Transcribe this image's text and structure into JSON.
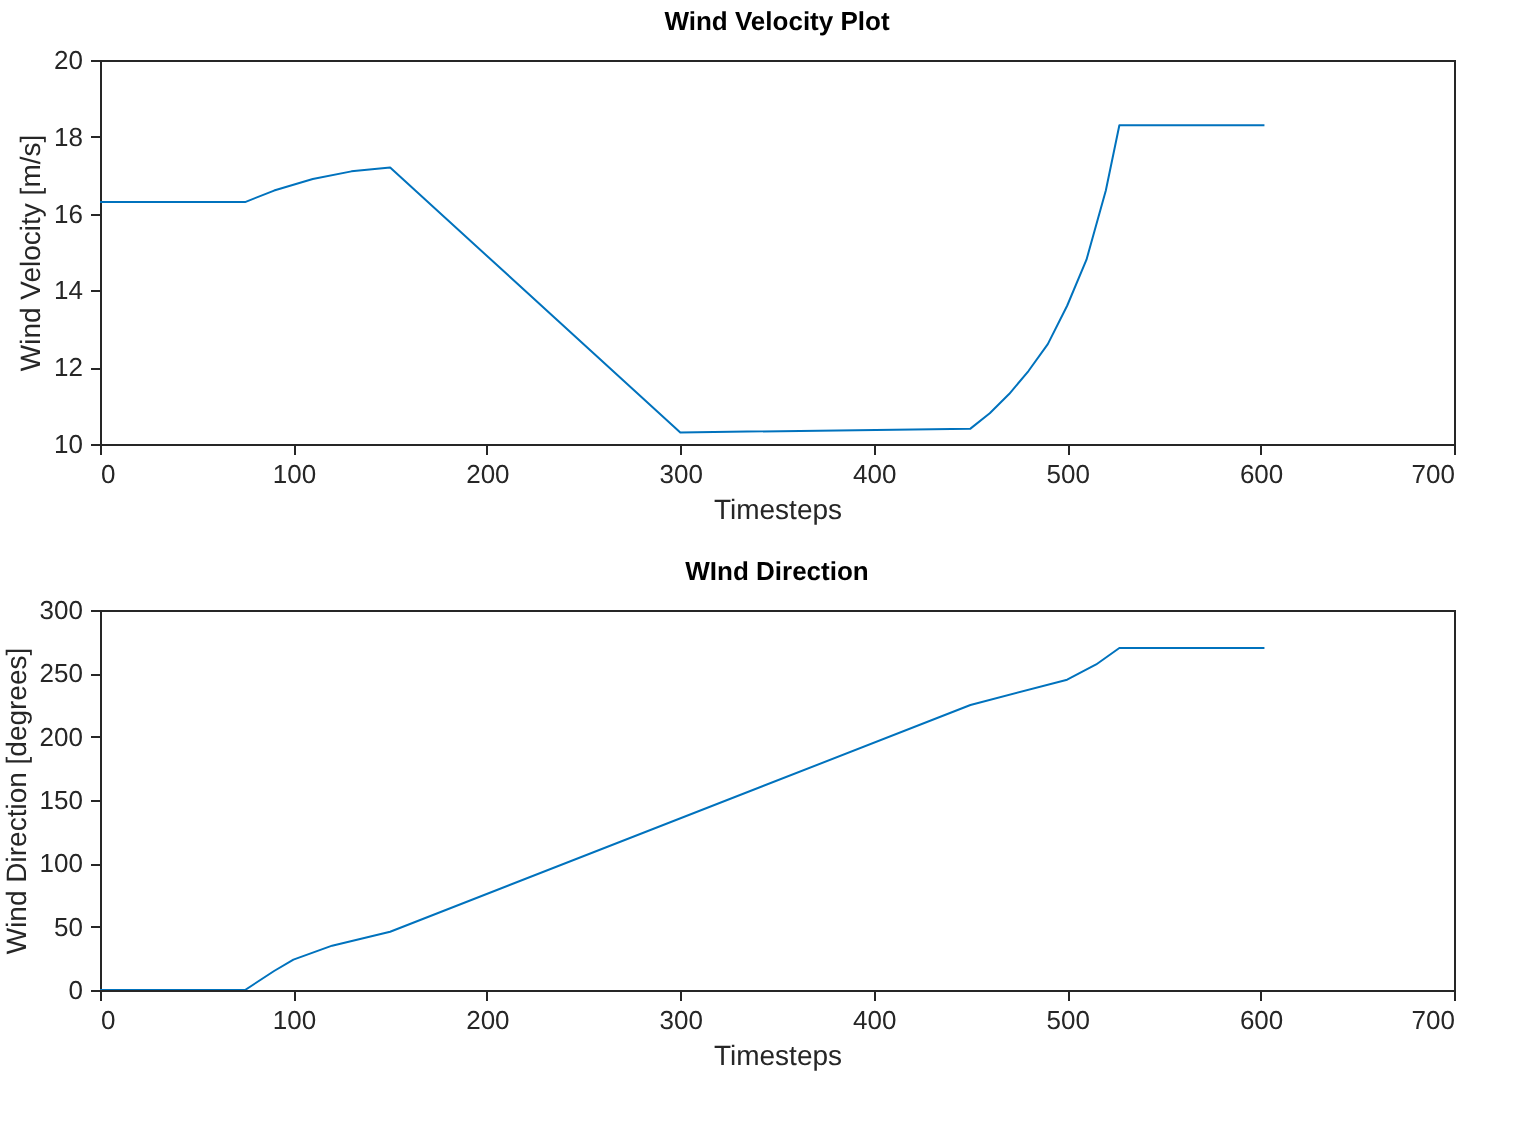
{
  "chart_data": [
    {
      "type": "line",
      "title": "Wind Velocity Plot",
      "xlabel": "Timesteps",
      "ylabel": "Wind Velocity [m/s]",
      "x": [
        0,
        75,
        90,
        110,
        130,
        150,
        300,
        450,
        460,
        470,
        480,
        490,
        500,
        510,
        520,
        527,
        602
      ],
      "series": [
        {
          "color": "#0072bd",
          "values": [
            16.3,
            16.3,
            16.6,
            16.9,
            17.1,
            17.2,
            10.3,
            10.4,
            10.8,
            11.3,
            11.9,
            12.6,
            13.6,
            14.8,
            16.6,
            18.3,
            18.3
          ]
        }
      ],
      "xlim": [
        0,
        700
      ],
      "xticks": [
        0,
        100,
        200,
        300,
        400,
        500,
        600,
        700
      ],
      "ylim": [
        10,
        20
      ],
      "yticks": [
        10,
        12,
        14,
        16,
        18,
        20
      ],
      "grid": false
    },
    {
      "type": "line",
      "title": "WInd Direction",
      "xlabel": "Timesteps",
      "ylabel": "Wind Direction [degrees]",
      "x": [
        0,
        75,
        90,
        100,
        120,
        150,
        450,
        500,
        515,
        527,
        602
      ],
      "series": [
        {
          "color": "#0072bd",
          "values": [
            0,
            0,
            15,
            24,
            35,
            46,
            225,
            245,
            257,
            270,
            270
          ]
        }
      ],
      "xlim": [
        0,
        700
      ],
      "xticks": [
        0,
        100,
        200,
        300,
        400,
        500,
        600,
        700
      ],
      "ylim": [
        0,
        300
      ],
      "yticks": [
        0,
        50,
        100,
        150,
        200,
        250,
        300
      ],
      "grid": false
    }
  ]
}
